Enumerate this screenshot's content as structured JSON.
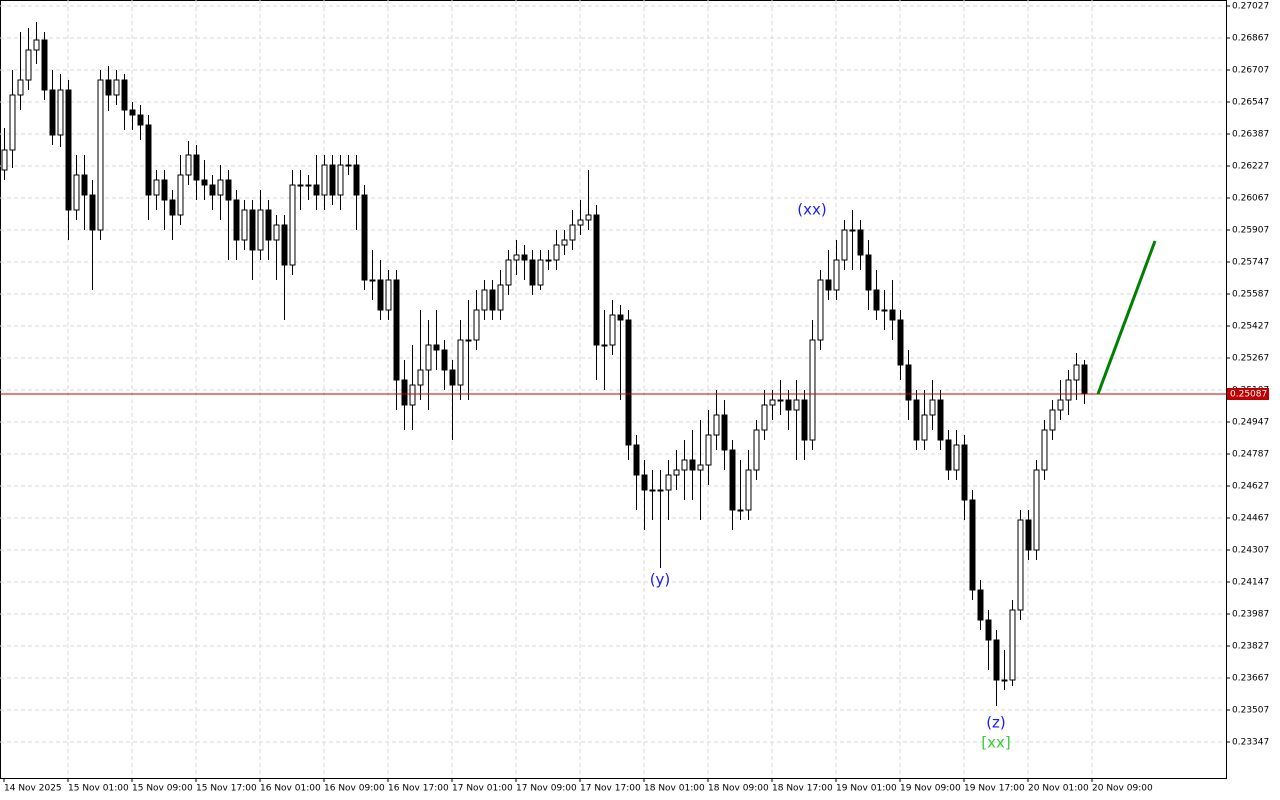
{
  "chart_data": {
    "type": "candlestick",
    "up_color": "#ffffff",
    "down_color": "#000000",
    "wick_color": "#000000",
    "ylim": [
      0.23167,
      0.27057
    ],
    "yticks": [
      0.27027,
      0.26867,
      0.26707,
      0.26547,
      0.26387,
      0.26227,
      0.26067,
      0.25907,
      0.25747,
      0.25587,
      0.25427,
      0.25267,
      0.25107,
      0.24947,
      0.24787,
      0.24627,
      0.24467,
      0.24307,
      0.24147,
      0.23987,
      0.23827,
      0.23667,
      0.23507,
      0.23347
    ],
    "xlim": [
      -0.5,
      152.75
    ],
    "xticks": [
      {
        "value": 0,
        "label": "14 Nov 2025"
      },
      {
        "value": 8,
        "label": "15 Nov 01:00"
      },
      {
        "value": 16,
        "label": "15 Nov 09:00"
      },
      {
        "value": 24,
        "label": "15 Nov 17:00"
      },
      {
        "value": 32,
        "label": "16 Nov 01:00"
      },
      {
        "value": 40,
        "label": "16 Nov 09:00"
      },
      {
        "value": 48,
        "label": "16 Nov 17:00"
      },
      {
        "value": 56,
        "label": "17 Nov 01:00"
      },
      {
        "value": 64,
        "label": "17 Nov 09:00"
      },
      {
        "value": 72,
        "label": "17 Nov 17:00"
      },
      {
        "value": 80,
        "label": "18 Nov 01:00"
      },
      {
        "value": 88,
        "label": "18 Nov 09:00"
      },
      {
        "value": 96,
        "label": "18 Nov 17:00"
      },
      {
        "value": 104,
        "label": "19 Nov 01:00"
      },
      {
        "value": 112,
        "label": "19 Nov 09:00"
      },
      {
        "value": 120,
        "label": "19 Nov 17:00"
      },
      {
        "value": 128,
        "label": "20 Nov 01:00"
      },
      {
        "value": 136,
        "label": "20 Nov 09:00"
      }
    ],
    "grid": true,
    "current_price": {
      "value": 0.25087,
      "color": "#c00000"
    },
    "projection": {
      "color": "#008000",
      "x": [
        136.75,
        143.875
      ],
      "values": [
        0.25087,
        0.25852
      ]
    },
    "annotations": [
      {
        "text": "(y)",
        "candle": 82,
        "price": 0.24157,
        "color": "#1a1aff"
      },
      {
        "text": "(xx)",
        "candle": 101,
        "price": 0.26007,
        "color": "#1a1aff"
      },
      {
        "text": "(z)",
        "candle": 124,
        "price": 0.23442,
        "color": "#1a1aff"
      },
      {
        "text": "[xx]",
        "candle": 124,
        "price": 0.23342,
        "color": "#33cc33"
      }
    ],
    "ohlc": [
      [
        0.26207,
        0.26417,
        0.26157,
        0.26307
      ],
      [
        0.26307,
        0.26707,
        0.26217,
        0.26582
      ],
      [
        0.26582,
        0.26897,
        0.26507,
        0.26657
      ],
      [
        0.26657,
        0.26917,
        0.26607,
        0.26807
      ],
      [
        0.26807,
        0.26947,
        0.26737,
        0.26857
      ],
      [
        0.26857,
        0.26897,
        0.26557,
        0.26607
      ],
      [
        0.26607,
        0.26707,
        0.26332,
        0.26382
      ],
      [
        0.26382,
        0.26687,
        0.26322,
        0.26607
      ],
      [
        0.26607,
        0.26657,
        0.25857,
        0.26007
      ],
      [
        0.26007,
        0.26282,
        0.25957,
        0.26182
      ],
      [
        0.26182,
        0.26282,
        0.25907,
        0.26082
      ],
      [
        0.26082,
        0.26157,
        0.25607,
        0.25907
      ],
      [
        0.25907,
        0.26707,
        0.25857,
        0.26657
      ],
      [
        0.26657,
        0.26727,
        0.26502,
        0.26582
      ],
      [
        0.26582,
        0.26707,
        0.26532,
        0.26657
      ],
      [
        0.26657,
        0.26687,
        0.26407,
        0.26507
      ],
      [
        0.26507,
        0.26547,
        0.26407,
        0.26482
      ],
      [
        0.26482,
        0.26532,
        0.26357,
        0.26432
      ],
      [
        0.26432,
        0.26482,
        0.25957,
        0.26082
      ],
      [
        0.26082,
        0.26207,
        0.26007,
        0.26157
      ],
      [
        0.26157,
        0.26207,
        0.25907,
        0.26057
      ],
      [
        0.26057,
        0.26107,
        0.25857,
        0.25982
      ],
      [
        0.25982,
        0.26282,
        0.25932,
        0.26182
      ],
      [
        0.26182,
        0.26352,
        0.26132,
        0.26282
      ],
      [
        0.26282,
        0.26332,
        0.26057,
        0.26157
      ],
      [
        0.26157,
        0.26257,
        0.26057,
        0.26132
      ],
      [
        0.26132,
        0.26182,
        0.26007,
        0.26082
      ],
      [
        0.26082,
        0.26232,
        0.25957,
        0.26157
      ],
      [
        0.26157,
        0.26207,
        0.25757,
        0.26057
      ],
      [
        0.26057,
        0.26107,
        0.25757,
        0.25857
      ],
      [
        0.25857,
        0.26057,
        0.25807,
        0.26007
      ],
      [
        0.26007,
        0.26057,
        0.25657,
        0.25807
      ],
      [
        0.25807,
        0.26107,
        0.25757,
        0.26007
      ],
      [
        0.26007,
        0.26057,
        0.25757,
        0.25857
      ],
      [
        0.25857,
        0.25982,
        0.25657,
        0.25932
      ],
      [
        0.25932,
        0.25982,
        0.25457,
        0.25732
      ],
      [
        0.25732,
        0.26207,
        0.25682,
        0.26132
      ],
      [
        0.26132,
        0.26207,
        0.26007,
        0.26132
      ],
      [
        0.26132,
        0.26182,
        0.26057,
        0.26132
      ],
      [
        0.26132,
        0.26282,
        0.26007,
        0.26082
      ],
      [
        0.26082,
        0.26282,
        0.26007,
        0.26232
      ],
      [
        0.26232,
        0.26282,
        0.26032,
        0.26082
      ],
      [
        0.26082,
        0.26282,
        0.26007,
        0.26232
      ],
      [
        0.26232,
        0.26282,
        0.26182,
        0.26232
      ],
      [
        0.26232,
        0.26282,
        0.25907,
        0.26082
      ],
      [
        0.26082,
        0.26132,
        0.25607,
        0.25657
      ],
      [
        0.25657,
        0.25807,
        0.25557,
        0.25657
      ],
      [
        0.25657,
        0.25757,
        0.25457,
        0.25507
      ],
      [
        0.25507,
        0.25707,
        0.25457,
        0.25657
      ],
      [
        0.25657,
        0.25707,
        0.25007,
        0.25157
      ],
      [
        0.25157,
        0.25257,
        0.24907,
        0.25032
      ],
      [
        0.25032,
        0.25332,
        0.24907,
        0.25132
      ],
      [
        0.25132,
        0.25507,
        0.25057,
        0.25207
      ],
      [
        0.25207,
        0.25457,
        0.25007,
        0.25332
      ],
      [
        0.25332,
        0.25507,
        0.25207,
        0.25307
      ],
      [
        0.25307,
        0.25357,
        0.25107,
        0.25207
      ],
      [
        0.25207,
        0.25257,
        0.24857,
        0.25132
      ],
      [
        0.25132,
        0.25457,
        0.25057,
        0.25357
      ],
      [
        0.25357,
        0.25557,
        0.25057,
        0.25357
      ],
      [
        0.25357,
        0.25607,
        0.25307,
        0.25507
      ],
      [
        0.25507,
        0.25657,
        0.25457,
        0.25607
      ],
      [
        0.25607,
        0.25657,
        0.25457,
        0.25507
      ],
      [
        0.25507,
        0.25707,
        0.25457,
        0.25632
      ],
      [
        0.25632,
        0.25807,
        0.25582,
        0.25757
      ],
      [
        0.25757,
        0.25857,
        0.25682,
        0.25782
      ],
      [
        0.25782,
        0.25832,
        0.25657,
        0.25757
      ],
      [
        0.25757,
        0.25807,
        0.25582,
        0.25632
      ],
      [
        0.25632,
        0.25807,
        0.25607,
        0.25757
      ],
      [
        0.25757,
        0.25807,
        0.25707,
        0.25757
      ],
      [
        0.25757,
        0.25907,
        0.25707,
        0.25832
      ],
      [
        0.25832,
        0.25907,
        0.25782,
        0.25857
      ],
      [
        0.25857,
        0.26007,
        0.25807,
        0.25932
      ],
      [
        0.25932,
        0.26057,
        0.25882,
        0.25957
      ],
      [
        0.25957,
        0.26207,
        0.25907,
        0.25982
      ],
      [
        0.25982,
        0.26032,
        0.25157,
        0.25332
      ],
      [
        0.25332,
        0.25507,
        0.25107,
        0.25332
      ],
      [
        0.25332,
        0.25557,
        0.25282,
        0.25482
      ],
      [
        0.25482,
        0.25532,
        0.25057,
        0.25457
      ],
      [
        0.25457,
        0.25507,
        0.24757,
        0.24832
      ],
      [
        0.24832,
        0.24882,
        0.24507,
        0.24682
      ],
      [
        0.24682,
        0.24757,
        0.24407,
        0.24607
      ],
      [
        0.24607,
        0.24707,
        0.24457,
        0.24607
      ],
      [
        0.24607,
        0.24707,
        0.24217,
        0.24607
      ],
      [
        0.24607,
        0.24757,
        0.24457,
        0.24682
      ],
      [
        0.24682,
        0.24807,
        0.24607,
        0.24707
      ],
      [
        0.24707,
        0.24857,
        0.24557,
        0.24757
      ],
      [
        0.24757,
        0.24907,
        0.24557,
        0.24707
      ],
      [
        0.24707,
        0.24957,
        0.24457,
        0.24732
      ],
      [
        0.24732,
        0.25007,
        0.24632,
        0.24882
      ],
      [
        0.24882,
        0.25107,
        0.24807,
        0.24982
      ],
      [
        0.24982,
        0.25057,
        0.24707,
        0.24807
      ],
      [
        0.24807,
        0.24857,
        0.24407,
        0.24507
      ],
      [
        0.24507,
        0.24757,
        0.24457,
        0.24507
      ],
      [
        0.24507,
        0.24807,
        0.24457,
        0.24707
      ],
      [
        0.24707,
        0.24957,
        0.24657,
        0.24907
      ],
      [
        0.24907,
        0.25107,
        0.24857,
        0.25032
      ],
      [
        0.25032,
        0.25107,
        0.24957,
        0.25057
      ],
      [
        0.25057,
        0.25157,
        0.24982,
        0.25057
      ],
      [
        0.25057,
        0.25107,
        0.24907,
        0.25007
      ],
      [
        0.25007,
        0.25157,
        0.24757,
        0.25057
      ],
      [
        0.25057,
        0.25107,
        0.24757,
        0.24857
      ],
      [
        0.24857,
        0.25457,
        0.24807,
        0.25357
      ],
      [
        0.25357,
        0.25707,
        0.25307,
        0.25657
      ],
      [
        0.25657,
        0.25807,
        0.25557,
        0.25607
      ],
      [
        0.25607,
        0.25857,
        0.25557,
        0.25757
      ],
      [
        0.25757,
        0.25957,
        0.25707,
        0.25907
      ],
      [
        0.25907,
        0.26007,
        0.25707,
        0.25907
      ],
      [
        0.25907,
        0.25957,
        0.25707,
        0.25782
      ],
      [
        0.25782,
        0.25857,
        0.25507,
        0.25607
      ],
      [
        0.25607,
        0.25707,
        0.25457,
        0.25507
      ],
      [
        0.25507,
        0.25607,
        0.25407,
        0.25507
      ],
      [
        0.25507,
        0.25657,
        0.25357,
        0.25457
      ],
      [
        0.25457,
        0.25507,
        0.25157,
        0.25232
      ],
      [
        0.25232,
        0.25307,
        0.24957,
        0.25057
      ],
      [
        0.25057,
        0.25107,
        0.24807,
        0.24857
      ],
      [
        0.24857,
        0.25107,
        0.24807,
        0.24982
      ],
      [
        0.24982,
        0.25157,
        0.24907,
        0.25057
      ],
      [
        0.25057,
        0.25107,
        0.24807,
        0.24857
      ],
      [
        0.24857,
        0.24907,
        0.24657,
        0.24707
      ],
      [
        0.24707,
        0.24907,
        0.24657,
        0.24832
      ],
      [
        0.24832,
        0.24882,
        0.24457,
        0.24557
      ],
      [
        0.24557,
        0.24607,
        0.24057,
        0.24107
      ],
      [
        0.24107,
        0.24157,
        0.23907,
        0.23957
      ],
      [
        0.23957,
        0.24007,
        0.23707,
        0.23857
      ],
      [
        0.23857,
        0.23907,
        0.23527,
        0.23657
      ],
      [
        0.23657,
        0.23807,
        0.23607,
        0.23657
      ],
      [
        0.23657,
        0.24057,
        0.23627,
        0.24007
      ],
      [
        0.24007,
        0.24507,
        0.23957,
        0.24457
      ],
      [
        0.24457,
        0.24507,
        0.24257,
        0.24307
      ],
      [
        0.24307,
        0.24757,
        0.24257,
        0.24707
      ],
      [
        0.24707,
        0.24957,
        0.24657,
        0.24907
      ],
      [
        0.24907,
        0.25057,
        0.24857,
        0.25007
      ],
      [
        0.25007,
        0.25157,
        0.24957,
        0.25057
      ],
      [
        0.25057,
        0.25207,
        0.24982,
        0.25157
      ],
      [
        0.25157,
        0.25292,
        0.25057,
        0.25232
      ],
      [
        0.25232,
        0.25257,
        0.25037,
        0.25087
      ]
    ]
  }
}
